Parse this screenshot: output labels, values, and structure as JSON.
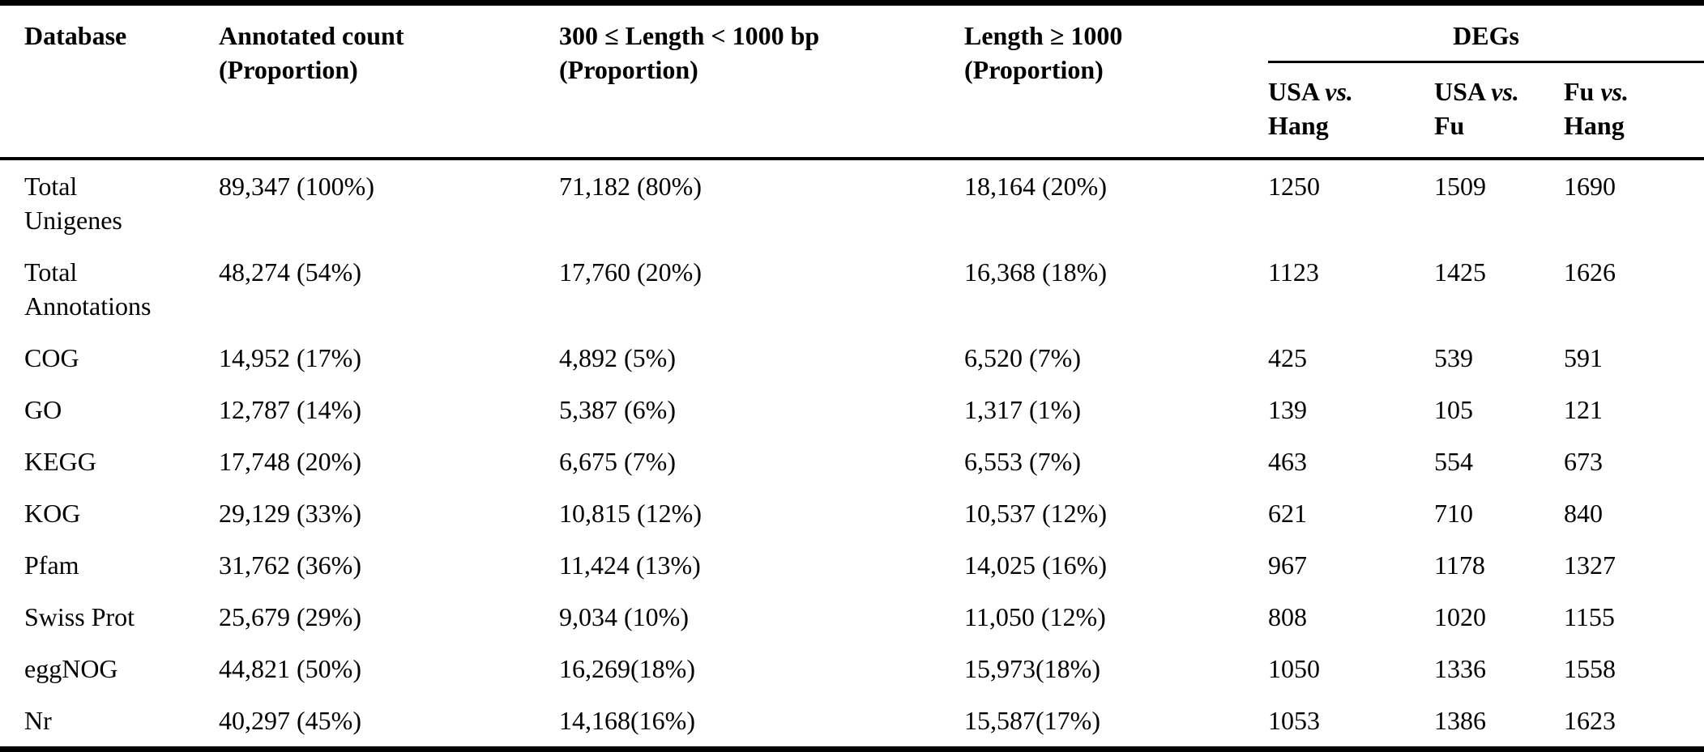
{
  "colors": {
    "text": "#000000",
    "background": "#ffffff",
    "rule": "#000000"
  },
  "table": {
    "columns": {
      "database": "Database",
      "annotated": {
        "line1": "Annotated count",
        "line2": "(Proportion)"
      },
      "length_300_1000": {
        "line1": "300 ≤ Length < 1000 bp",
        "line2": "(Proportion)"
      },
      "length_ge_1000": {
        "line1": "Length ≥ 1000",
        "line2": "(Proportion)"
      },
      "degs": {
        "label": "DEGs",
        "sub": [
          {
            "pre": "USA ",
            "vs": "vs.",
            "second": "Hang"
          },
          {
            "pre": "USA ",
            "vs": "vs.",
            "second": "Fu"
          },
          {
            "pre": "Fu ",
            "vs": "vs.",
            "second": "Hang"
          }
        ]
      }
    },
    "rows": [
      {
        "database": "Total Unigenes",
        "annotated": "89,347 (100%)",
        "len300": "71,182 (80%)",
        "len1000": "18,164 (20%)",
        "usa_hang": "1250",
        "usa_fu": "1509",
        "fu_hang": "1690"
      },
      {
        "database": "Total Annotations",
        "annotated": "48,274 (54%)",
        "len300": "17,760 (20%)",
        "len1000": "16,368 (18%)",
        "usa_hang": "1123",
        "usa_fu": "1425",
        "fu_hang": "1626"
      },
      {
        "database": "COG",
        "annotated": "14,952 (17%)",
        "len300": "4,892 (5%)",
        "len1000": "6,520 (7%)",
        "usa_hang": "425",
        "usa_fu": "539",
        "fu_hang": "591"
      },
      {
        "database": "GO",
        "annotated": "12,787 (14%)",
        "len300": "5,387 (6%)",
        "len1000": "1,317 (1%)",
        "usa_hang": "139",
        "usa_fu": "105",
        "fu_hang": "121"
      },
      {
        "database": "KEGG",
        "annotated": "17,748 (20%)",
        "len300": "6,675 (7%)",
        "len1000": "6,553 (7%)",
        "usa_hang": "463",
        "usa_fu": "554",
        "fu_hang": "673"
      },
      {
        "database": "KOG",
        "annotated": "29,129 (33%)",
        "len300": "10,815 (12%)",
        "len1000": "10,537 (12%)",
        "usa_hang": "621",
        "usa_fu": "710",
        "fu_hang": "840"
      },
      {
        "database": "Pfam",
        "annotated": "31,762 (36%)",
        "len300": "11,424 (13%)",
        "len1000": "14,025 (16%)",
        "usa_hang": "967",
        "usa_fu": "1178",
        "fu_hang": "1327"
      },
      {
        "database": "Swiss Prot",
        "annotated": "25,679 (29%)",
        "len300": "9,034 (10%)",
        "len1000": "11,050 (12%)",
        "usa_hang": "808",
        "usa_fu": "1020",
        "fu_hang": "1155"
      },
      {
        "database": "eggNOG",
        "annotated": "44,821 (50%)",
        "len300": "16,269(18%)",
        "len1000": "15,973(18%)",
        "usa_hang": "1050",
        "usa_fu": "1336",
        "fu_hang": "1558"
      },
      {
        "database": "Nr",
        "annotated": "40,297 (45%)",
        "len300": "14,168(16%)",
        "len1000": "15,587(17%)",
        "usa_hang": "1053",
        "usa_fu": "1386",
        "fu_hang": "1623"
      }
    ]
  }
}
